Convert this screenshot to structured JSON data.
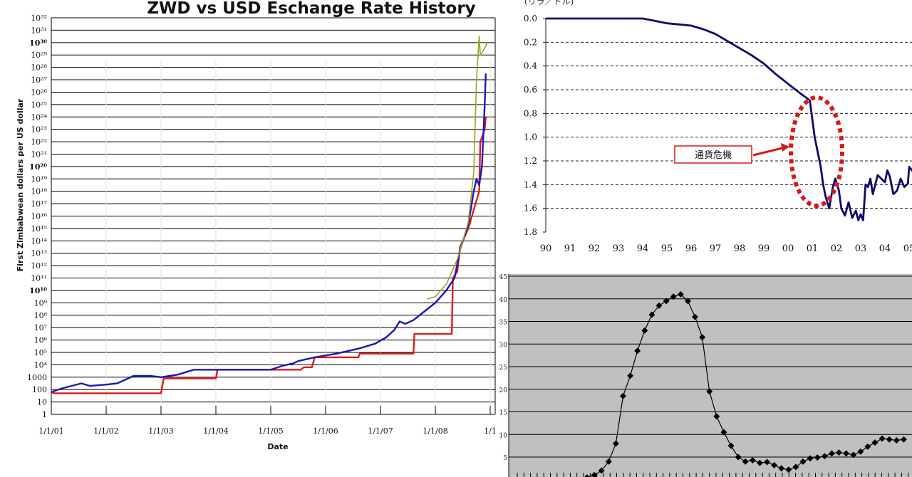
{
  "chart_data": [
    {
      "type": "line",
      "title": "ZWD vs USD Eschange Rate History",
      "xlabel": "Date",
      "ylabel": "First Zimbabwean dollars per US dollar",
      "scale": "log",
      "x_ticks": [
        "1/1/01",
        "1/1/02",
        "1/1/03",
        "1/1/04",
        "1/1/05",
        "1/1/06",
        "1/1/07",
        "1/1/08",
        "1/1"
      ],
      "y_ticks_plain": [
        "1",
        "10",
        "100",
        "1000"
      ],
      "y_ticks_exp": [
        "10⁴",
        "10⁵",
        "10⁶",
        "10⁷",
        "10⁸",
        "10⁹",
        "10¹⁰",
        "10¹¹",
        "10¹²",
        "10¹³",
        "10¹⁴",
        "10¹⁵",
        "10¹⁶",
        "10¹⁷",
        "10¹⁸",
        "10¹⁹",
        "10²⁰",
        "10²¹",
        "10²²",
        "10²³",
        "10²⁴",
        "10²⁵",
        "10²⁶",
        "10²⁷",
        "10²⁸",
        "10²⁹",
        "10³⁰",
        "10³¹",
        "10³²"
      ],
      "legend_marks": [
        "–",
        "–"
      ],
      "series": [
        {
          "color": "#e01a1a",
          "points": [
            [
              2001.0,
              1.8
            ],
            [
              2001.05,
              1.7
            ],
            [
              2003.0,
              1.7
            ],
            [
              2003.05,
              2.9
            ],
            [
              2004.0,
              2.9
            ],
            [
              2004.03,
              3.6
            ],
            [
              2005.55,
              3.6
            ],
            [
              2005.6,
              3.8
            ],
            [
              2005.75,
              3.8
            ],
            [
              2005.8,
              4.6
            ],
            [
              2006.6,
              4.6
            ],
            [
              2006.62,
              4.9
            ],
            [
              2007.6,
              4.9
            ],
            [
              2007.62,
              6.5
            ],
            [
              2008.3,
              6.5
            ],
            [
              2008.32,
              11.0
            ],
            [
              2008.4,
              11.5
            ],
            [
              2008.45,
              13.5
            ],
            [
              2008.6,
              15.0
            ],
            [
              2008.7,
              16.5
            ],
            [
              2008.8,
              18.0
            ],
            [
              2008.82,
              22.0
            ],
            [
              2008.9,
              23.0
            ],
            [
              2008.92,
              24.0
            ]
          ]
        },
        {
          "color": "#1a1ab4",
          "points": [
            [
              2001.0,
              1.8
            ],
            [
              2001.2,
              2.1
            ],
            [
              2001.55,
              2.5
            ],
            [
              2001.7,
              2.3
            ],
            [
              2002.0,
              2.4
            ],
            [
              2002.2,
              2.5
            ],
            [
              2002.5,
              3.1
            ],
            [
              2002.8,
              3.1
            ],
            [
              2003.0,
              3.0
            ],
            [
              2003.3,
              3.2
            ],
            [
              2003.6,
              3.6
            ],
            [
              2004.0,
              3.6
            ],
            [
              2004.5,
              3.6
            ],
            [
              2005.0,
              3.6
            ],
            [
              2005.2,
              3.9
            ],
            [
              2005.4,
              4.1
            ],
            [
              2005.5,
              4.3
            ],
            [
              2005.8,
              4.6
            ],
            [
              2006.2,
              4.9
            ],
            [
              2006.6,
              5.3
            ],
            [
              2006.9,
              5.7
            ],
            [
              2007.1,
              6.2
            ],
            [
              2007.25,
              6.8
            ],
            [
              2007.35,
              7.5
            ],
            [
              2007.45,
              7.3
            ],
            [
              2007.6,
              7.6
            ],
            [
              2007.8,
              8.3
            ],
            [
              2008.0,
              9.0
            ],
            [
              2008.2,
              10.0
            ],
            [
              2008.35,
              11.0
            ],
            [
              2008.45,
              13.3
            ],
            [
              2008.6,
              15.3
            ],
            [
              2008.7,
              18.0
            ],
            [
              2008.75,
              19.0
            ],
            [
              2008.8,
              18.5
            ],
            [
              2008.85,
              20.0
            ],
            [
              2008.9,
              25.0
            ],
            [
              2008.92,
              27.5
            ]
          ]
        },
        {
          "color": "#a0a020",
          "points": [
            [
              2007.85,
              9.3
            ],
            [
              2008.0,
              9.5
            ],
            [
              2008.2,
              10.5
            ],
            [
              2008.4,
              12.5
            ],
            [
              2008.6,
              15.5
            ],
            [
              2008.7,
              19.5
            ],
            [
              2008.75,
              27.0
            ],
            [
              2008.8,
              30.5
            ],
            [
              2008.82,
              29.0
            ],
            [
              2008.88,
              29.4
            ],
            [
              2008.95,
              30.0
            ]
          ]
        }
      ]
    },
    {
      "type": "line",
      "unit_label": "(リラ／ドル)",
      "annotation": "通貨危機",
      "x_ticks": [
        "90",
        "91",
        "92",
        "93",
        "94",
        "95",
        "96",
        "97",
        "98",
        "99",
        "00",
        "01",
        "02",
        "03",
        "04",
        "05"
      ],
      "y_ticks": [
        "0.0",
        "0.2",
        "0.4",
        "0.6",
        "0.8",
        "1.0",
        "1.2",
        "1.4",
        "1.6",
        "1.8"
      ],
      "ylim": [
        0.0,
        1.8
      ],
      "y_inverted": true,
      "grid": "dashed",
      "series": [
        {
          "color": "#0a0a6e",
          "x": [
            90.0,
            92.0,
            93.0,
            94.0,
            94.5,
            95.0,
            95.5,
            96.0,
            96.5,
            97.0,
            97.5,
            98.0,
            98.5,
            99.0,
            99.5,
            100.0,
            100.5,
            100.9,
            101.1,
            101.25,
            101.35,
            101.45,
            101.55,
            101.7,
            101.85,
            101.95,
            102.1,
            102.2,
            102.35,
            102.5,
            102.65,
            102.8,
            102.9,
            103.0,
            103.1,
            103.2,
            103.3,
            103.4,
            103.5,
            103.6,
            103.7,
            103.85,
            104.0,
            104.1,
            104.2,
            104.35,
            104.5,
            104.65,
            104.8,
            104.95,
            105.0,
            105.2
          ],
          "y": [
            0.0,
            0.0,
            0.0,
            0.0,
            0.02,
            0.04,
            0.05,
            0.06,
            0.09,
            0.13,
            0.19,
            0.25,
            0.31,
            0.38,
            0.47,
            0.55,
            0.63,
            0.69,
            1.0,
            1.15,
            1.25,
            1.4,
            1.5,
            1.6,
            1.42,
            1.35,
            1.45,
            1.6,
            1.66,
            1.55,
            1.68,
            1.62,
            1.7,
            1.65,
            1.7,
            1.4,
            1.42,
            1.35,
            1.48,
            1.4,
            1.32,
            1.35,
            1.38,
            1.28,
            1.33,
            1.48,
            1.45,
            1.35,
            1.42,
            1.39,
            1.25,
            1.3
          ]
        }
      ]
    },
    {
      "type": "line",
      "unit_label": "(%)",
      "y_ticks": [
        "5",
        "10",
        "15",
        "20",
        "25",
        "30",
        "35",
        "40",
        "45"
      ],
      "ylim": [
        0,
        45
      ],
      "grid": "horizontal",
      "series": [
        {
          "color": "#000000",
          "marker": "diamond",
          "values": [
            0.5,
            1,
            2,
            4,
            8,
            18.5,
            23,
            28.5,
            33,
            36.5,
            38.5,
            39.5,
            40.5,
            41,
            39.5,
            36,
            31.5,
            19.5,
            14,
            10.5,
            7.5,
            5,
            4,
            4.3,
            3.7,
            3.9,
            3.2,
            2.5,
            2.2,
            2.8,
            4,
            4.7,
            4.9,
            5.2,
            5.8,
            6,
            5.8,
            5.5,
            6.2,
            7.3,
            8.2,
            9.1,
            8.9,
            8.7,
            8.9
          ]
        }
      ]
    }
  ]
}
